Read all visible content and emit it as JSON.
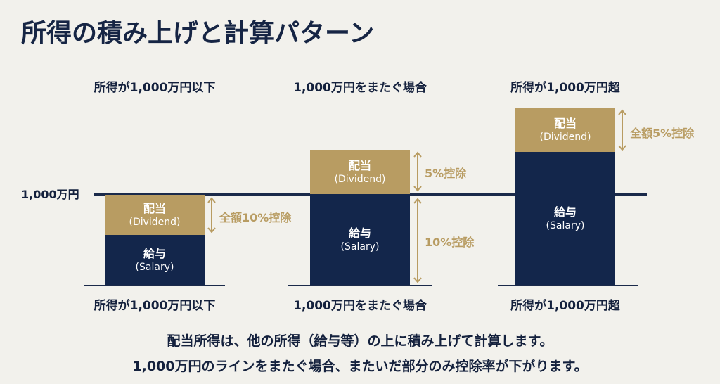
{
  "title": "所得の積み上げと計算パターン",
  "threshold_label": "1,000万円",
  "columns": [
    {
      "header": "所得が1,000万円以下",
      "footer": "所得が1,000万円以下",
      "dividend": {
        "label": "配当",
        "sub": "(Dividend)"
      },
      "salary": {
        "label": "給与",
        "sub": "(Salary)"
      },
      "annotations": [
        "全額10%控除"
      ]
    },
    {
      "header": "1,000万円をまたぐ場合",
      "footer": "1,000万円をまたぐ場合",
      "dividend": {
        "label": "配当",
        "sub": "(Dividend)"
      },
      "salary": {
        "label": "給与",
        "sub": "(Salary)"
      },
      "annotations": [
        "5%控除",
        "10%控除"
      ]
    },
    {
      "header": "所得が1,000万円超",
      "footer": "所得が1,000万円超",
      "dividend": {
        "label": "配当",
        "sub": "(Dividend)"
      },
      "salary": {
        "label": "給与",
        "sub": "(Salary)"
      },
      "annotations": [
        "全額5%控除"
      ]
    }
  ],
  "caption": [
    "配当所得は、他の所得（給与等）の上に積み上げて計算します。",
    "1,000万円のラインをまたぐ場合、またいだ部分のみ控除率が下がります。"
  ],
  "colors": {
    "navy": "#13264b",
    "gold": "#b89c62",
    "background": "#f2f1ec"
  }
}
